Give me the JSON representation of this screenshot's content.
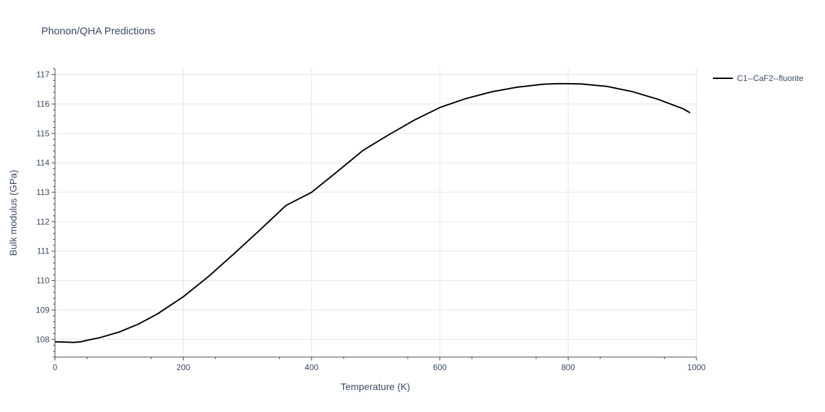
{
  "chart_data": {
    "type": "line",
    "title": "Phonon/QHA Predictions",
    "xlabel": "Temperature (K)",
    "ylabel": "Bulk modulus (GPa)",
    "xlim": [
      0,
      1000
    ],
    "ylim": [
      107.4,
      117.2
    ],
    "x_ticks": [
      0,
      200,
      400,
      600,
      800,
      1000
    ],
    "y_ticks": [
      108,
      109,
      110,
      111,
      112,
      113,
      114,
      115,
      116,
      117
    ],
    "grid": true,
    "legend_position": "top-right",
    "series": [
      {
        "name": "C1--CaF2--fluorite",
        "color": "#000000",
        "x": [
          0,
          30,
          40,
          50,
          70,
          100,
          130,
          160,
          200,
          240,
          280,
          320,
          360,
          400,
          440,
          480,
          520,
          560,
          600,
          640,
          680,
          720,
          760,
          780,
          800,
          820,
          860,
          900,
          940,
          980,
          990
        ],
        "y": [
          107.92,
          107.9,
          107.92,
          107.97,
          108.06,
          108.25,
          108.52,
          108.87,
          109.45,
          110.15,
          110.93,
          111.73,
          112.55,
          113.0,
          113.7,
          114.42,
          114.95,
          115.45,
          115.88,
          116.18,
          116.41,
          116.57,
          116.67,
          116.69,
          116.69,
          116.68,
          116.6,
          116.42,
          116.16,
          115.83,
          115.7
        ]
      }
    ]
  }
}
